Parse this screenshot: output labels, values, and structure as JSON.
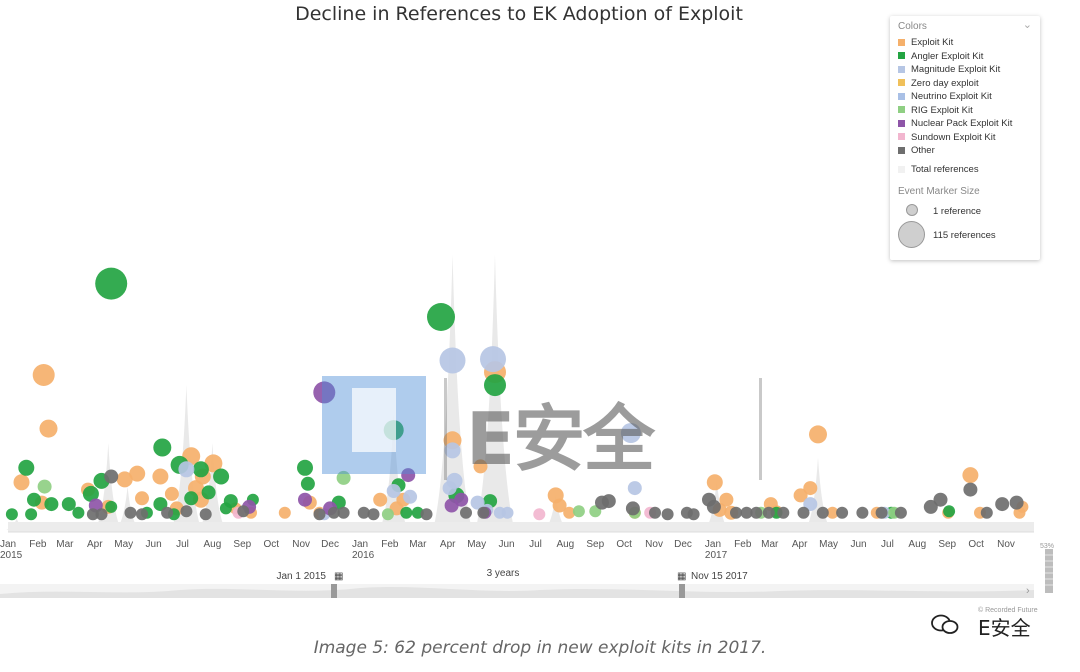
{
  "chart_data": {
    "type": "scatter",
    "title": "Decline in References to EK Adoption of Exploit",
    "x_range": [
      "2015-01-01",
      "2017-11-30"
    ],
    "y_axis_shown": false,
    "grid": false,
    "legend_position": "top-right",
    "legend_title": "Colors",
    "size_legend_title": "Event Marker Size",
    "size_legend": [
      {
        "label": "1 reference",
        "references": 1
      },
      {
        "label": "115 references",
        "references": 115
      }
    ],
    "total_label": "Total references",
    "series": [
      {
        "name": "Exploit Kit",
        "color": "#f5b06b",
        "points": [
          [
            "2015-02-07",
            100,
            22
          ],
          [
            "2015-02-12",
            63,
            18
          ],
          [
            "2015-01-15",
            26,
            16
          ],
          [
            "2015-02-05",
            12,
            14
          ],
          [
            "2015-03-25",
            21,
            14
          ],
          [
            "2015-04-15",
            9,
            14
          ],
          [
            "2015-05-02",
            28,
            16
          ],
          [
            "2015-05-15",
            32,
            16
          ],
          [
            "2015-05-20",
            15,
            14
          ],
          [
            "2015-06-08",
            30,
            16
          ],
          [
            "2015-06-20",
            18,
            14
          ],
          [
            "2015-07-10",
            44,
            18
          ],
          [
            "2015-07-15",
            22,
            16
          ],
          [
            "2015-07-20",
            14,
            16
          ],
          [
            "2015-08-02",
            39,
            18
          ],
          [
            "2015-07-22",
            30,
            16
          ],
          [
            "2015-06-25",
            8,
            14
          ],
          [
            "2015-08-25",
            8,
            12
          ],
          [
            "2015-09-10",
            5,
            12
          ],
          [
            "2015-10-15",
            5,
            12
          ],
          [
            "2015-11-10",
            12,
            14
          ],
          [
            "2015-11-20",
            5,
            12
          ],
          [
            "2016-01-22",
            14,
            14
          ],
          [
            "2016-02-08",
            8,
            14
          ],
          [
            "2016-02-15",
            14,
            14
          ],
          [
            "2016-04-06",
            55,
            18
          ],
          [
            "2016-05-05",
            37,
            14
          ],
          [
            "2016-05-20",
            102,
            22
          ],
          [
            "2016-07-22",
            17,
            16
          ],
          [
            "2016-07-26",
            10,
            14
          ],
          [
            "2016-08-05",
            5,
            12
          ],
          [
            "2016-10-12",
            5,
            12
          ],
          [
            "2017-01-03",
            26,
            16
          ],
          [
            "2017-01-08",
            7,
            14
          ],
          [
            "2017-01-15",
            14,
            14
          ],
          [
            "2017-01-20",
            5,
            14
          ],
          [
            "2017-03-02",
            11,
            14
          ],
          [
            "2017-03-08",
            6,
            12
          ],
          [
            "2017-04-02",
            17,
            14
          ],
          [
            "2017-04-12",
            22,
            14
          ],
          [
            "2017-04-20",
            59,
            18
          ],
          [
            "2017-05-05",
            5,
            12
          ],
          [
            "2017-06-20",
            5,
            12
          ],
          [
            "2017-09-02",
            5,
            12
          ],
          [
            "2017-09-25",
            31,
            16
          ],
          [
            "2017-10-05",
            5,
            12
          ],
          [
            "2017-11-15",
            5,
            12
          ],
          [
            "2017-11-18",
            9,
            12
          ]
        ]
      },
      {
        "name": "Angler Exploit Kit",
        "color": "#23a442",
        "points": [
          [
            "2015-04-18",
            163,
            32
          ],
          [
            "2015-01-20",
            36,
            16
          ],
          [
            "2015-01-28",
            14,
            14
          ],
          [
            "2015-02-15",
            11,
            14
          ],
          [
            "2015-03-05",
            11,
            14
          ],
          [
            "2015-03-15",
            5,
            12
          ],
          [
            "2015-03-28",
            18,
            16
          ],
          [
            "2015-04-08",
            27,
            16
          ],
          [
            "2015-04-18",
            9,
            12
          ],
          [
            "2015-05-25",
            5,
            12
          ],
          [
            "2015-06-10",
            50,
            18
          ],
          [
            "2015-06-08",
            11,
            14
          ],
          [
            "2015-06-22",
            4,
            12
          ],
          [
            "2015-06-28",
            38,
            18
          ],
          [
            "2015-07-10",
            15,
            14
          ],
          [
            "2015-07-20",
            35,
            16
          ],
          [
            "2015-08-10",
            30,
            16
          ],
          [
            "2015-07-28",
            19,
            14
          ],
          [
            "2015-08-20",
            13,
            14
          ],
          [
            "2015-08-15",
            8,
            12
          ],
          [
            "2015-09-12",
            14,
            12
          ],
          [
            "2015-11-05",
            36,
            16
          ],
          [
            "2015-11-08",
            25,
            14
          ],
          [
            "2015-12-10",
            12,
            14
          ],
          [
            "2016-02-05",
            62,
            20
          ],
          [
            "2016-02-10",
            24,
            14
          ],
          [
            "2016-02-18",
            5,
            12
          ],
          [
            "2016-03-01",
            5,
            12
          ],
          [
            "2016-03-25",
            140,
            28
          ],
          [
            "2016-05-20",
            93,
            22
          ],
          [
            "2016-04-10",
            17,
            16
          ],
          [
            "2016-05-15",
            13,
            14
          ],
          [
            "2015-01-05",
            4,
            12
          ],
          [
            "2015-01-25",
            4,
            12
          ],
          [
            "2017-03-08",
            5,
            12
          ],
          [
            "2017-07-05",
            5,
            12
          ],
          [
            "2017-09-03",
            6,
            12
          ]
        ]
      },
      {
        "name": "Magnitude Exploit Kit",
        "color": "#b6c6e4",
        "points": [
          [
            "2016-04-06",
            110,
            26
          ],
          [
            "2016-05-18",
            111,
            26
          ],
          [
            "2016-04-06",
            48,
            16
          ],
          [
            "2016-04-08",
            27,
            16
          ],
          [
            "2016-04-03",
            22,
            14
          ],
          [
            "2016-05-02",
            12,
            14
          ],
          [
            "2016-05-12",
            7,
            12
          ],
          [
            "2016-05-25",
            5,
            12
          ],
          [
            "2016-06-02",
            5,
            12
          ],
          [
            "2016-10-08",
            60,
            20
          ],
          [
            "2016-10-12",
            22,
            14
          ],
          [
            "2017-04-12",
            11,
            14
          ],
          [
            "2017-06-28",
            5,
            12
          ],
          [
            "2015-07-05",
            35,
            16
          ],
          [
            "2015-11-25",
            4,
            12
          ],
          [
            "2016-02-05",
            20,
            14
          ],
          [
            "2016-02-22",
            16,
            14
          ]
        ]
      },
      {
        "name": "Zero day exploit",
        "color": "#f0c05a",
        "points": []
      },
      {
        "name": "Neutrino Exploit Kit",
        "color": "#a9c0e6",
        "points": []
      },
      {
        "name": "RIG Exploit Kit",
        "color": "#8fcf83",
        "points": [
          [
            "2015-02-08",
            23,
            14
          ],
          [
            "2015-12-15",
            29,
            14
          ],
          [
            "2016-01-30",
            4,
            12
          ],
          [
            "2016-08-15",
            6,
            12
          ],
          [
            "2017-02-20",
            5,
            12
          ],
          [
            "2017-07-08",
            5,
            12
          ],
          [
            "2016-09-01",
            6,
            12
          ],
          [
            "2016-10-12",
            5,
            12
          ]
        ]
      },
      {
        "name": "Nuclear Pack Exploit Kit",
        "color": "#8e55a8",
        "points": [
          [
            "2015-11-25",
            88,
            22
          ],
          [
            "2015-04-02",
            10,
            14
          ],
          [
            "2015-09-08",
            9,
            14
          ],
          [
            "2015-11-05",
            14,
            14
          ],
          [
            "2015-12-01",
            8,
            14
          ],
          [
            "2016-02-20",
            31,
            14
          ],
          [
            "2016-04-05",
            10,
            14
          ],
          [
            "2016-04-15",
            14,
            14
          ],
          [
            "2016-05-10",
            5,
            12
          ]
        ]
      },
      {
        "name": "Sundown Exploit Kit",
        "color": "#f2b6cf",
        "points": [
          [
            "2015-08-28",
            5,
            12
          ],
          [
            "2016-07-05",
            4,
            12
          ],
          [
            "2016-10-28",
            5,
            12
          ]
        ]
      },
      {
        "name": "Other",
        "color": "#6e6e6e",
        "points": [
          [
            "2015-04-18",
            30,
            14
          ],
          [
            "2015-03-30",
            4,
            12
          ],
          [
            "2015-04-08",
            4,
            12
          ],
          [
            "2015-05-08",
            5,
            12
          ],
          [
            "2015-05-20",
            4,
            12
          ],
          [
            "2015-06-15",
            5,
            12
          ],
          [
            "2015-07-05",
            6,
            12
          ],
          [
            "2015-07-25",
            4,
            12
          ],
          [
            "2015-09-02",
            6,
            12
          ],
          [
            "2015-11-20",
            4,
            12
          ],
          [
            "2015-12-05",
            5,
            12
          ],
          [
            "2015-12-15",
            5,
            12
          ],
          [
            "2016-01-05",
            5,
            12
          ],
          [
            "2016-01-15",
            4,
            12
          ],
          [
            "2016-03-10",
            4,
            12
          ],
          [
            "2016-04-20",
            5,
            12
          ],
          [
            "2016-05-08",
            5,
            12
          ],
          [
            "2016-09-08",
            12,
            14
          ],
          [
            "2016-09-15",
            13,
            14
          ],
          [
            "2016-10-10",
            8,
            14
          ],
          [
            "2016-11-02",
            5,
            12
          ],
          [
            "2016-11-15",
            4,
            12
          ],
          [
            "2016-12-05",
            5,
            12
          ],
          [
            "2016-12-12",
            4,
            12
          ],
          [
            "2016-12-28",
            14,
            14
          ],
          [
            "2017-01-02",
            9,
            14
          ],
          [
            "2017-01-25",
            5,
            12
          ],
          [
            "2017-02-05",
            5,
            12
          ],
          [
            "2017-02-15",
            5,
            12
          ],
          [
            "2017-02-28",
            5,
            12
          ],
          [
            "2017-03-15",
            5,
            12
          ],
          [
            "2017-04-05",
            5,
            12
          ],
          [
            "2017-04-25",
            5,
            12
          ],
          [
            "2017-05-15",
            5,
            12
          ],
          [
            "2017-06-05",
            5,
            12
          ],
          [
            "2017-06-25",
            5,
            12
          ],
          [
            "2017-08-15",
            9,
            14
          ],
          [
            "2017-08-25",
            14,
            14
          ],
          [
            "2017-09-25",
            21,
            14
          ],
          [
            "2017-10-12",
            5,
            12
          ],
          [
            "2017-10-28",
            11,
            14
          ],
          [
            "2017-11-12",
            12,
            14
          ],
          [
            "2017-07-15",
            5,
            12
          ]
        ]
      }
    ],
    "x_tick_labels": [
      {
        "date": "2015-01-01",
        "label": "Jan",
        "sub": "2015"
      },
      {
        "date": "2015-02-01",
        "label": "Feb"
      },
      {
        "date": "2015-03-01",
        "label": "Mar"
      },
      {
        "date": "2015-04-01",
        "label": "Apr"
      },
      {
        "date": "2015-05-01",
        "label": "May"
      },
      {
        "date": "2015-06-01",
        "label": "Jun"
      },
      {
        "date": "2015-07-01",
        "label": "Jul"
      },
      {
        "date": "2015-08-01",
        "label": "Aug"
      },
      {
        "date": "2015-09-01",
        "label": "Sep"
      },
      {
        "date": "2015-10-01",
        "label": "Oct"
      },
      {
        "date": "2015-11-01",
        "label": "Nov"
      },
      {
        "date": "2015-12-01",
        "label": "Dec"
      },
      {
        "date": "2016-01-01",
        "label": "Jan",
        "sub": "2016"
      },
      {
        "date": "2016-02-01",
        "label": "Feb"
      },
      {
        "date": "2016-03-01",
        "label": "Mar"
      },
      {
        "date": "2016-04-01",
        "label": "Apr"
      },
      {
        "date": "2016-05-01",
        "label": "May"
      },
      {
        "date": "2016-06-01",
        "label": "Jun"
      },
      {
        "date": "2016-07-01",
        "label": "Jul"
      },
      {
        "date": "2016-08-01",
        "label": "Aug"
      },
      {
        "date": "2016-09-01",
        "label": "Sep"
      },
      {
        "date": "2016-10-01",
        "label": "Oct"
      },
      {
        "date": "2016-11-01",
        "label": "Nov"
      },
      {
        "date": "2016-12-01",
        "label": "Dec"
      },
      {
        "date": "2017-01-01",
        "label": "Jan",
        "sub": "2017"
      },
      {
        "date": "2017-02-01",
        "label": "Feb"
      },
      {
        "date": "2017-03-01",
        "label": "Mar"
      },
      {
        "date": "2017-04-01",
        "label": "Apr"
      },
      {
        "date": "2017-05-01",
        "label": "May"
      },
      {
        "date": "2017-06-01",
        "label": "Jun"
      },
      {
        "date": "2017-07-01",
        "label": "Jul"
      },
      {
        "date": "2017-08-01",
        "label": "Aug"
      },
      {
        "date": "2017-09-01",
        "label": "Sep"
      },
      {
        "date": "2017-10-01",
        "label": "Oct"
      },
      {
        "date": "2017-11-01",
        "label": "Nov"
      }
    ]
  },
  "range_selector": {
    "start_label": "Jan 1 2015",
    "span_label": "3 years",
    "end_label": "Nov 15 2017",
    "percent_label": "53%"
  },
  "caption": "Image 5: 62 percent drop in new exploit kits in 2017.",
  "watermark": {
    "text": "E安全",
    "letter": "E"
  },
  "credit": "© Recorded Future",
  "wechat_label": "E安全"
}
